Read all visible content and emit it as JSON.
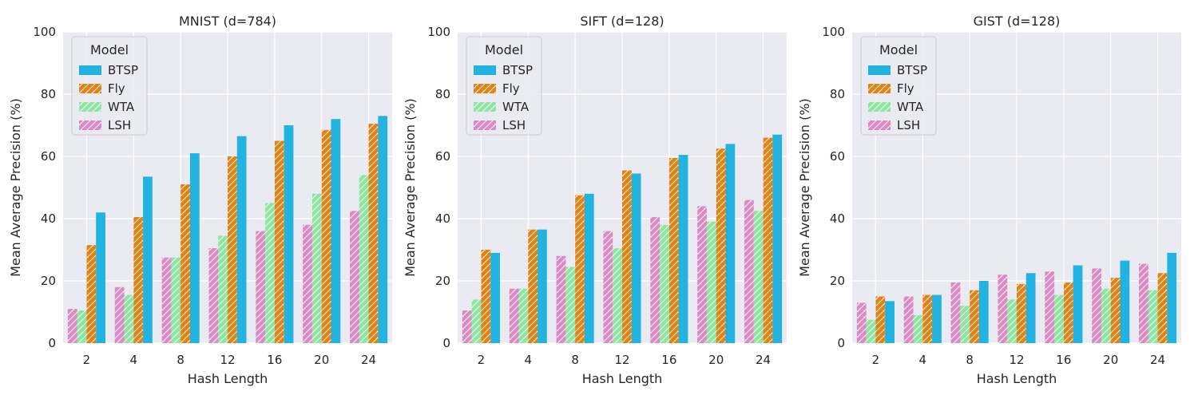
{
  "chart_data": [
    {
      "type": "bar",
      "title": "MNIST (d=784)",
      "xlabel": "Hash Length",
      "ylabel": "Mean Average Precision (%)",
      "ylim": [
        0,
        100
      ],
      "yticks": [
        0,
        20,
        40,
        60,
        80,
        100
      ],
      "categories": [
        "2",
        "4",
        "8",
        "12",
        "16",
        "20",
        "24"
      ],
      "legend_title": "Model",
      "legend_position": "top-left",
      "grid": true,
      "series": [
        {
          "name": "LSH",
          "color": "#da8bc3",
          "hatched": true,
          "values": [
            11,
            18,
            27.5,
            30.5,
            36,
            38,
            42.5
          ]
        },
        {
          "name": "WTA",
          "color": "#8de5a1",
          "hatched": true,
          "values": [
            10.5,
            15.5,
            27.5,
            34.5,
            45,
            48,
            54
          ]
        },
        {
          "name": "Fly",
          "color": "#e08214",
          "hatched": true,
          "values": [
            31.5,
            40.5,
            51,
            60,
            65,
            68.5,
            70.5
          ]
        },
        {
          "name": "BTSP",
          "color": "#23b3e0",
          "hatched": false,
          "values": [
            42,
            53.5,
            61,
            66.5,
            70,
            72,
            73
          ]
        }
      ]
    },
    {
      "type": "bar",
      "title": "SIFT (d=128)",
      "xlabel": "Hash Length",
      "ylabel": "Mean Average Precision (%)",
      "ylim": [
        0,
        100
      ],
      "yticks": [
        0,
        20,
        40,
        60,
        80,
        100
      ],
      "categories": [
        "2",
        "4",
        "8",
        "12",
        "16",
        "20",
        "24"
      ],
      "legend_title": "Model",
      "legend_position": "top-left",
      "grid": true,
      "series": [
        {
          "name": "LSH",
          "color": "#da8bc3",
          "hatched": true,
          "values": [
            10.5,
            17.5,
            28,
            36,
            40.5,
            44,
            46
          ]
        },
        {
          "name": "WTA",
          "color": "#8de5a1",
          "hatched": true,
          "values": [
            14,
            17.5,
            24.5,
            30.5,
            38,
            39,
            42.5
          ]
        },
        {
          "name": "Fly",
          "color": "#e08214",
          "hatched": true,
          "values": [
            30,
            36.5,
            47.5,
            55.5,
            59.5,
            62.5,
            66
          ]
        },
        {
          "name": "BTSP",
          "color": "#23b3e0",
          "hatched": false,
          "values": [
            29,
            36.5,
            48,
            54.5,
            60.5,
            64,
            67
          ]
        }
      ]
    },
    {
      "type": "bar",
      "title": "GIST (d=128)",
      "xlabel": "Hash Length",
      "ylabel": "Mean Average Precision (%)",
      "ylim": [
        0,
        100
      ],
      "yticks": [
        0,
        20,
        40,
        60,
        80,
        100
      ],
      "categories": [
        "2",
        "4",
        "8",
        "12",
        "16",
        "20",
        "24"
      ],
      "legend_title": "Model",
      "legend_position": "top-left",
      "grid": true,
      "series": [
        {
          "name": "LSH",
          "color": "#da8bc3",
          "hatched": true,
          "values": [
            13,
            15,
            19.5,
            22,
            23,
            24,
            25.5
          ]
        },
        {
          "name": "WTA",
          "color": "#8de5a1",
          "hatched": true,
          "values": [
            7.5,
            9,
            12,
            14,
            15.5,
            17.5,
            17
          ]
        },
        {
          "name": "Fly",
          "color": "#e08214",
          "hatched": true,
          "values": [
            15,
            15.5,
            17,
            19,
            19.5,
            21,
            22.5
          ]
        },
        {
          "name": "BTSP",
          "color": "#23b3e0",
          "hatched": false,
          "values": [
            13.5,
            15.5,
            20,
            22.5,
            25,
            26.5,
            29
          ]
        }
      ]
    }
  ]
}
